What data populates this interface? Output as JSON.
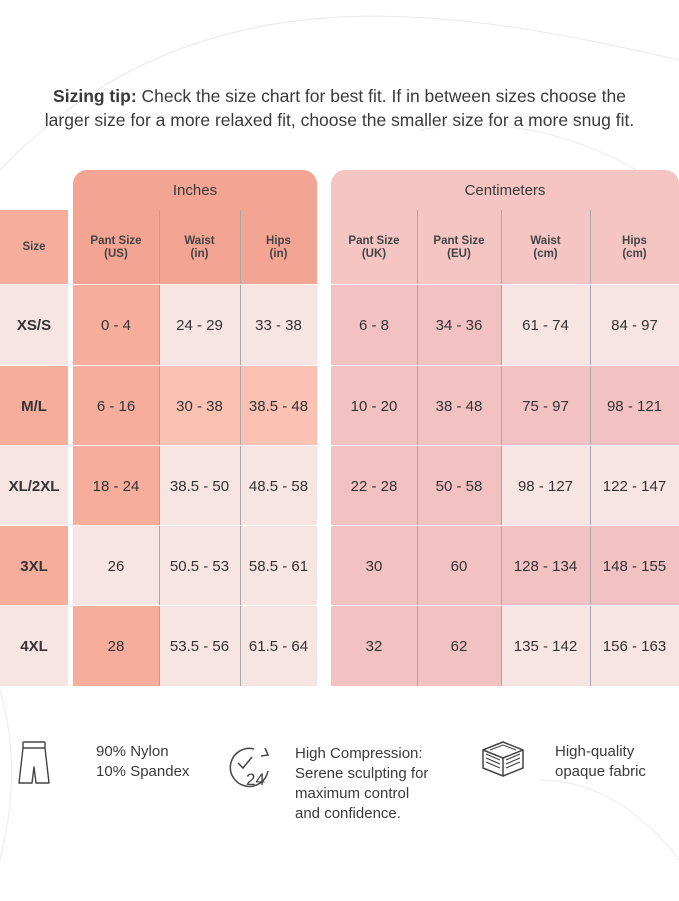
{
  "tip": {
    "bold": "Sizing tip:",
    "line1": " Check the size chart for best fit. If in between sizes choose the",
    "line2": "larger size for a more relaxed fit, choose the smaller size for a more snug fit."
  },
  "chart": {
    "group_inches": "Inches",
    "group_cm": "Centimeters",
    "headers": {
      "size": "Size",
      "pant_us": "Pant Size\n(US)",
      "waist_in": "Waist\n(in)",
      "hips_in": "Hips\n(in)",
      "pant_uk": "Pant Size\n(UK)",
      "pant_eu": "Pant Size\n(EU)",
      "waist_cm": "Waist\n(cm)",
      "hips_cm": "Hips\n(cm)"
    },
    "rows": [
      {
        "size": "XS/S",
        "pant_us": "0 - 4",
        "waist_in": "24 - 29",
        "hips_in": "33 - 38",
        "pant_uk": "6 - 8",
        "pant_eu": "34 - 36",
        "waist_cm": "61 - 74",
        "hips_cm": "84 - 97"
      },
      {
        "size": "M/L",
        "pant_us": "6 - 16",
        "waist_in": "30 - 38",
        "hips_in": "38.5 - 48",
        "pant_uk": "10 - 20",
        "pant_eu": "38 - 48",
        "waist_cm": "75 - 97",
        "hips_cm": "98 - 121"
      },
      {
        "size": "XL/2XL",
        "pant_us": "18 - 24",
        "waist_in": "38.5 - 50",
        "hips_in": "48.5 - 58",
        "pant_uk": "22 - 28",
        "pant_eu": "50 - 58",
        "waist_cm": "98 - 127",
        "hips_cm": "122 - 147"
      },
      {
        "size": "3XL",
        "pant_us": "26",
        "waist_in": "50.5 - 53",
        "hips_in": "58.5 - 61",
        "pant_uk": "30",
        "pant_eu": "60",
        "waist_cm": "128 - 134",
        "hips_cm": "148 - 155"
      },
      {
        "size": "4XL",
        "pant_us": "28",
        "waist_in": "53.5 - 56",
        "hips_in": "61.5 - 64",
        "pant_uk": "32",
        "pant_eu": "62",
        "waist_cm": "135 - 142",
        "hips_cm": "156 - 163"
      }
    ]
  },
  "features": [
    {
      "icon": "shorts-icon",
      "text": "90% Nylon\n10% Spandex"
    },
    {
      "icon": "24-hour-clock-icon",
      "text": "High Compression:\nSerene sculpting for\nmaximum control\nand confidence."
    },
    {
      "icon": "fabric-layers-icon",
      "text": "High-quality\nopaque fabric"
    }
  ],
  "colors": {
    "inches_header": "#f4a492",
    "cm_header": "#f4c5c3",
    "light_pink": "#f7e5e3",
    "salmon": "#f6ad9c",
    "peach": "#fbc1b3",
    "rose": "#f2c2c2"
  }
}
